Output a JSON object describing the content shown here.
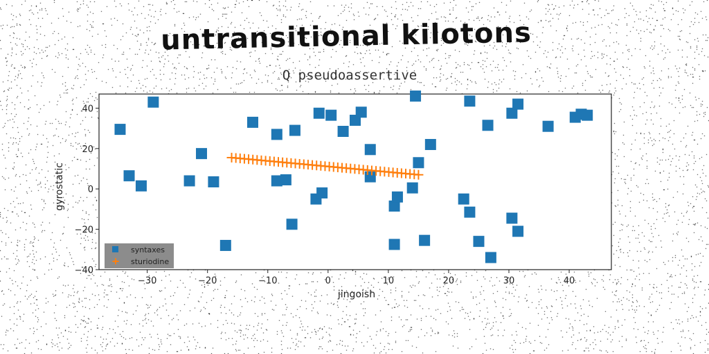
{
  "colors": {
    "background": "#ffffff",
    "series_a": "#1f77b4",
    "series_b": "#ff7f0e",
    "legend_bg": "#8c8c8c"
  },
  "chart_data": {
    "type": "scatter",
    "title": "untransitional kilotons",
    "subtitle": "Q pseudoassertive",
    "xlabel": "jingoish",
    "ylabel": "gyrostatic",
    "xlim": [
      -38,
      47
    ],
    "ylim": [
      -40,
      47
    ],
    "xticks": [
      -30,
      -20,
      -10,
      0,
      10,
      20,
      30,
      40
    ],
    "yticks": [
      -40,
      -20,
      0,
      20,
      40
    ],
    "grid": false,
    "legend_position": "lower-left",
    "series": [
      {
        "name": "syntaxes",
        "marker": "square",
        "color": "#1f77b4",
        "points": [
          [
            -34.5,
            29.5
          ],
          [
            -33,
            6.5
          ],
          [
            -31,
            1.5
          ],
          [
            -29,
            43
          ],
          [
            -23,
            4
          ],
          [
            -21,
            17.5
          ],
          [
            -19,
            3.5
          ],
          [
            -17,
            -28
          ],
          [
            -12.5,
            33
          ],
          [
            -8.5,
            27
          ],
          [
            -8.5,
            4
          ],
          [
            -7,
            4.5
          ],
          [
            -6,
            -17.5
          ],
          [
            -5.5,
            29
          ],
          [
            -2,
            -5
          ],
          [
            -1.5,
            37.5
          ],
          [
            -1,
            -2
          ],
          [
            0.5,
            36.5
          ],
          [
            2.5,
            28.5
          ],
          [
            4.5,
            34
          ],
          [
            5.5,
            38
          ],
          [
            7,
            6
          ],
          [
            7,
            19.5
          ],
          [
            11,
            -8.5
          ],
          [
            11,
            -27.5
          ],
          [
            11.5,
            -4
          ],
          [
            14,
            0.5
          ],
          [
            14.5,
            46
          ],
          [
            15,
            13
          ],
          [
            16,
            -25.5
          ],
          [
            17,
            22
          ],
          [
            22.5,
            -5
          ],
          [
            23.5,
            43.5
          ],
          [
            23.5,
            -11.5
          ],
          [
            25,
            -26
          ],
          [
            26.5,
            31.5
          ],
          [
            27,
            -34
          ],
          [
            30.5,
            37.5
          ],
          [
            30.5,
            -14.5
          ],
          [
            31.5,
            42
          ],
          [
            31.5,
            -21
          ],
          [
            36.5,
            31
          ],
          [
            41,
            35.5
          ],
          [
            42,
            37
          ],
          [
            43,
            36.5
          ]
        ]
      },
      {
        "name": "sturiodine",
        "marker": "plus",
        "color": "#ff7f0e",
        "x_range": [
          -16,
          15
        ],
        "y_range": [
          15.5,
          7
        ],
        "count": 45
      }
    ]
  }
}
